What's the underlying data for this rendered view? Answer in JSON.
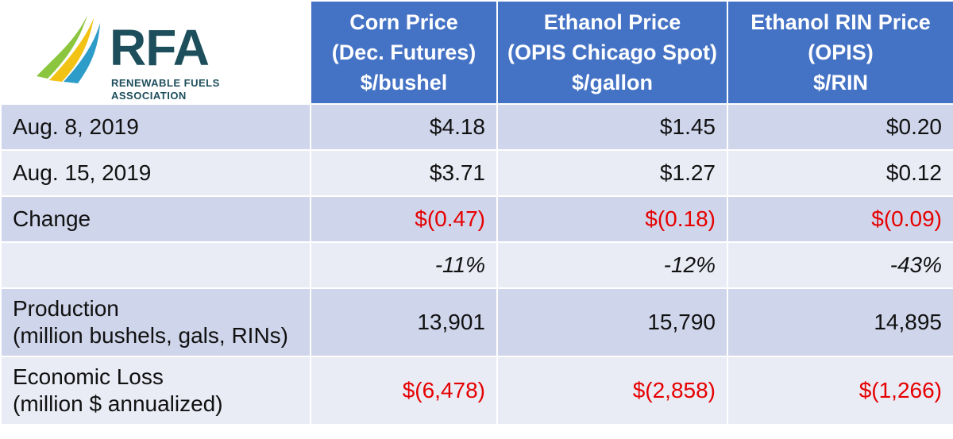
{
  "logo": {
    "brand": "RFA",
    "line1": "RENEWABLE FUELS",
    "line2": "ASSOCIATION"
  },
  "headers": [
    {
      "lines": [
        "Corn Price",
        "(Dec. Futures)",
        "$/bushel"
      ]
    },
    {
      "lines": [
        "Ethanol Price",
        "(OPIS Chicago Spot)",
        "$/gallon"
      ]
    },
    {
      "lines": [
        "Ethanol RIN Price",
        "(OPIS)",
        "$/RIN"
      ]
    }
  ],
  "rows": [
    {
      "label": [
        "Aug. 8, 2019"
      ],
      "values": [
        "$4.18",
        "$1.45",
        "$0.20"
      ]
    },
    {
      "label": [
        "Aug. 15, 2019"
      ],
      "values": [
        "$3.71",
        "$1.27",
        "$0.12"
      ]
    },
    {
      "label": [
        "Change"
      ],
      "values": [
        "$(0.47)",
        "$(0.18)",
        "$(0.09)"
      ]
    },
    {
      "label": [
        ""
      ],
      "values": [
        "-11%",
        "-12%",
        "-43%"
      ]
    },
    {
      "label": [
        "Production",
        "(million bushels, gals, RINs)"
      ],
      "values": [
        "13,901",
        "15,790",
        "14,895"
      ]
    },
    {
      "label": [
        "Economic Loss",
        "(million $ annualized)"
      ],
      "values": [
        "$(6,478)",
        "$(2,858)",
        "$(1,266)"
      ]
    }
  ],
  "colors": {
    "header_bg": "#4472c4",
    "band_dark": "#cfd5ea",
    "band_light": "#e9ebf5",
    "negative": "#e60000",
    "logo_text": "#1d4e5b"
  }
}
